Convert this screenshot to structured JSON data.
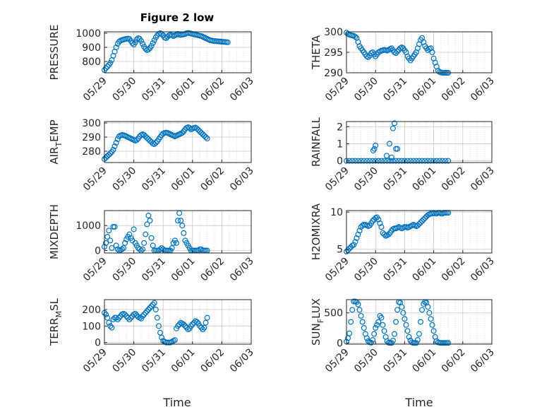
{
  "figure": {
    "title": "Figure 2 low",
    "xlabel": "Time"
  },
  "colors": {
    "series": "#0072BD",
    "axis": "#262626",
    "grid": "#c8c8c8"
  },
  "chart_data": [
    {
      "type": "scatter",
      "ylabel": "PRESSURE",
      "xlim": [
        "05/29",
        "06/03"
      ],
      "ylim": [
        720,
        1010
      ],
      "yticks": [
        800,
        900,
        1000
      ],
      "grid": true,
      "x_days": [
        0.0,
        0.05,
        0.1,
        0.15,
        0.2,
        0.25,
        0.3,
        0.35,
        0.4,
        0.45,
        0.5,
        0.55,
        0.6,
        0.65,
        0.7,
        0.75,
        0.8,
        0.85,
        0.9,
        0.95,
        1.0,
        1.05,
        1.1,
        1.15,
        1.2,
        1.25,
        1.3,
        1.35,
        1.4,
        1.45,
        1.5,
        1.55,
        1.6,
        1.65,
        1.7,
        1.75,
        1.8,
        1.85,
        1.9,
        1.95,
        2.0,
        2.05,
        2.1,
        2.15,
        2.2,
        2.25,
        2.3,
        2.35,
        2.4,
        2.45,
        2.5,
        2.55,
        2.6,
        2.65,
        2.7,
        2.75,
        2.8,
        2.85,
        2.9,
        2.95,
        3.0,
        3.05,
        3.1,
        3.15,
        3.2,
        3.25,
        3.3,
        3.35,
        3.4,
        3.45,
        3.5,
        3.55,
        3.6,
        3.65,
        3.7,
        3.75,
        3.8,
        3.85,
        3.9,
        3.95,
        4.0,
        4.05,
        4.1,
        4.15,
        4.2
      ],
      "values": [
        740,
        752,
        764,
        776,
        790,
        810,
        840,
        870,
        900,
        925,
        940,
        948,
        952,
        955,
        958,
        960,
        962,
        960,
        945,
        930,
        920,
        935,
        955,
        965,
        960,
        945,
        925,
        905,
        890,
        880,
        885,
        895,
        910,
        930,
        950,
        970,
        985,
        995,
        1000,
        995,
        985,
        970,
        965,
        975,
        985,
        990,
        985,
        980,
        985,
        990,
        995,
        990,
        988,
        990,
        992,
        995,
        1000,
        1002,
        1000,
        998,
        995,
        992,
        990,
        988,
        985,
        982,
        980,
        975,
        970,
        965,
        960,
        955,
        950,
        948,
        946,
        945,
        944,
        943,
        942,
        941,
        940,
        939,
        938,
        937,
        936
      ],
      "x": [
        "05/29",
        "05/30",
        "05/31",
        "06/01",
        "06/02",
        "06/03"
      ]
    },
    {
      "type": "scatter",
      "ylabel": "THETA",
      "xlim": [
        "05/29",
        "06/03"
      ],
      "ylim": [
        290,
        300
      ],
      "yticks": [
        290,
        295,
        300
      ],
      "grid": true,
      "x_days": [
        0.0,
        0.05,
        0.1,
        0.15,
        0.2,
        0.25,
        0.3,
        0.35,
        0.4,
        0.45,
        0.5,
        0.55,
        0.6,
        0.65,
        0.7,
        0.75,
        0.8,
        0.85,
        0.9,
        0.95,
        1.0,
        1.05,
        1.1,
        1.15,
        1.2,
        1.25,
        1.3,
        1.35,
        1.4,
        1.45,
        1.5,
        1.55,
        1.6,
        1.65,
        1.7,
        1.75,
        1.8,
        1.85,
        1.9,
        1.95,
        2.0,
        2.05,
        2.1,
        2.15,
        2.2,
        2.25,
        2.3,
        2.35,
        2.4,
        2.45,
        2.5,
        2.55,
        2.6,
        2.65,
        2.7,
        2.75,
        2.8,
        2.85,
        2.9,
        2.95,
        3.0,
        3.05,
        3.1,
        3.15,
        3.2,
        3.25,
        3.3,
        3.35,
        3.4,
        3.45,
        3.5
      ],
      "values": [
        299.8,
        299.5,
        299.3,
        299.2,
        299.1,
        299.0,
        298.8,
        298.5,
        297.5,
        296.5,
        296.0,
        295.5,
        295.0,
        294.5,
        294.0,
        293.8,
        294.2,
        294.8,
        295.0,
        294.5,
        294.0,
        294.5,
        295.0,
        295.2,
        295.4,
        295.5,
        295.6,
        295.5,
        295.4,
        295.6,
        295.8,
        296.0,
        295.5,
        295.0,
        294.8,
        295.2,
        295.6,
        296.0,
        296.2,
        296.0,
        295.5,
        295.0,
        294.0,
        293.5,
        293.0,
        293.5,
        294.0,
        294.5,
        295.0,
        296.0,
        297.0,
        298.0,
        298.5,
        297.5,
        296.5,
        296.0,
        295.5,
        295.8,
        296.0,
        295.0,
        293.5,
        292.5,
        291.5,
        290.5,
        290.2,
        290.1,
        290.0,
        290.0,
        290.0,
        290.0,
        290.0
      ],
      "x": [
        "05/29",
        "05/30",
        "05/31",
        "06/01",
        "06/02",
        "06/03"
      ]
    },
    {
      "type": "scatter",
      "ylabel": "AIR_TEMP",
      "xlim": [
        "05/29",
        "06/03"
      ],
      "ylim": [
        272,
        301
      ],
      "yticks": [
        280,
        290,
        300
      ],
      "grid": true,
      "x_days": [
        0.0,
        0.05,
        0.1,
        0.15,
        0.2,
        0.25,
        0.3,
        0.35,
        0.4,
        0.45,
        0.5,
        0.55,
        0.6,
        0.65,
        0.7,
        0.75,
        0.8,
        0.85,
        0.9,
        0.95,
        1.0,
        1.05,
        1.1,
        1.15,
        1.2,
        1.25,
        1.3,
        1.35,
        1.4,
        1.45,
        1.5,
        1.55,
        1.6,
        1.65,
        1.7,
        1.75,
        1.8,
        1.85,
        1.9,
        1.95,
        2.0,
        2.05,
        2.1,
        2.15,
        2.2,
        2.25,
        2.3,
        2.35,
        2.4,
        2.45,
        2.5,
        2.55,
        2.6,
        2.65,
        2.7,
        2.75,
        2.8,
        2.85,
        2.9,
        2.95,
        3.0,
        3.05,
        3.1,
        3.15,
        3.2,
        3.25,
        3.3,
        3.35,
        3.4,
        3.45,
        3.5
      ],
      "values": [
        274.5,
        275.5,
        276.5,
        277.5,
        278.5,
        279.5,
        281.0,
        283.5,
        286.0,
        288.5,
        290.5,
        291.2,
        291.5,
        291.3,
        291.0,
        290.5,
        290.0,
        289.5,
        289.0,
        288.5,
        288.0,
        287.5,
        288.0,
        289.0,
        290.5,
        291.5,
        292.0,
        291.5,
        290.5,
        289.5,
        288.5,
        287.5,
        286.5,
        285.5,
        285.0,
        286.0,
        287.0,
        288.5,
        290.0,
        291.5,
        292.5,
        293.0,
        293.2,
        293.0,
        292.5,
        292.0,
        291.5,
        291.0,
        290.5,
        291.0,
        291.5,
        292.0,
        292.5,
        293.0,
        294.0,
        295.5,
        296.5,
        297.0,
        296.5,
        295.5,
        296.0,
        296.5,
        296.8,
        296.0,
        295.0,
        294.0,
        293.0,
        292.0,
        291.0,
        290.0,
        289.0
      ],
      "x": [
        "05/29",
        "05/30",
        "05/31",
        "06/01",
        "06/02",
        "06/03"
      ]
    },
    {
      "type": "scatter",
      "ylabel": "RAINFALL",
      "xlim": [
        "05/29",
        "06/03"
      ],
      "ylim": [
        -0.1,
        2.3
      ],
      "yticks": [
        0,
        1,
        2
      ],
      "grid": true,
      "x_days": [
        0.0,
        0.1,
        0.2,
        0.3,
        0.4,
        0.5,
        0.6,
        0.7,
        0.8,
        0.9,
        1.0,
        1.1,
        1.2,
        1.3,
        1.4,
        1.5,
        1.6,
        1.7,
        1.8,
        1.9,
        2.0,
        2.1,
        2.2,
        2.3,
        2.4,
        2.5,
        2.6,
        2.7,
        2.8,
        2.9,
        3.0,
        3.1,
        3.2,
        3.3,
        3.4,
        3.5,
        0.92,
        0.96,
        1.0,
        1.38,
        1.48,
        1.55,
        1.6,
        1.65,
        1.7,
        1.75
      ],
      "values": [
        0,
        0,
        0,
        0,
        0,
        0,
        0,
        0,
        0,
        0,
        0,
        0,
        0,
        0,
        0,
        0,
        0,
        0,
        0,
        0,
        0,
        0,
        0,
        0,
        0,
        0,
        0,
        0,
        0,
        0,
        0,
        0,
        0,
        0,
        0,
        0,
        0.6,
        0.7,
        0.9,
        0.3,
        1.0,
        0.2,
        1.9,
        2.2,
        0.7,
        0.7
      ],
      "x": [
        "05/29",
        "05/30",
        "05/31",
        "06/01",
        "06/02",
        "06/03"
      ]
    },
    {
      "type": "scatter",
      "ylabel": "MIXDEPTH",
      "xlim": [
        "05/29",
        "06/03"
      ],
      "ylim": [
        -100,
        1600
      ],
      "yticks": [
        0,
        1000
      ],
      "grid": true,
      "x_days": [
        0.0,
        0.05,
        0.1,
        0.15,
        0.2,
        0.25,
        0.3,
        0.35,
        0.4,
        0.45,
        0.5,
        0.55,
        0.6,
        0.65,
        0.7,
        0.75,
        0.8,
        0.85,
        0.9,
        0.95,
        1.0,
        1.05,
        1.1,
        1.15,
        1.2,
        1.25,
        1.3,
        1.35,
        1.4,
        1.45,
        1.5,
        1.55,
        1.6,
        1.65,
        1.7,
        1.75,
        1.8,
        1.85,
        1.9,
        1.95,
        2.0,
        2.05,
        2.1,
        2.15,
        2.2,
        2.25,
        2.3,
        2.35,
        2.4,
        2.45,
        2.5,
        2.55,
        2.6,
        2.65,
        2.7,
        2.75,
        2.8,
        2.85,
        2.9,
        2.95,
        3.0,
        3.05,
        3.1,
        3.15,
        3.2,
        3.25,
        3.3,
        3.35,
        3.4,
        3.45,
        3.5
      ],
      "values": [
        150,
        300,
        550,
        800,
        400,
        100,
        950,
        950,
        200,
        50,
        0,
        20,
        50,
        100,
        300,
        450,
        550,
        650,
        500,
        400,
        850,
        300,
        200,
        100,
        50,
        0,
        50,
        300,
        650,
        1050,
        1400,
        1200,
        500,
        200,
        0,
        0,
        0,
        0,
        50,
        100,
        50,
        0,
        0,
        0,
        0,
        0,
        100,
        300,
        400,
        300,
        1200,
        1500,
        1200,
        1000,
        700,
        400,
        300,
        200,
        100,
        0,
        0,
        0,
        0,
        0,
        0,
        50,
        50,
        0,
        0,
        0,
        0
      ],
      "x": [
        "05/29",
        "05/30",
        "05/31",
        "06/01",
        "06/02",
        "06/03"
      ]
    },
    {
      "type": "scatter",
      "ylabel": "H2OMIXRA",
      "xlim": [
        "05/29",
        "06/03"
      ],
      "ylim": [
        4.5,
        10.2
      ],
      "yticks": [
        5,
        10
      ],
      "grid": true,
      "x_days": [
        0.0,
        0.05,
        0.1,
        0.15,
        0.2,
        0.25,
        0.3,
        0.35,
        0.4,
        0.45,
        0.5,
        0.55,
        0.6,
        0.65,
        0.7,
        0.75,
        0.8,
        0.85,
        0.9,
        0.95,
        1.0,
        1.05,
        1.1,
        1.15,
        1.2,
        1.25,
        1.3,
        1.35,
        1.4,
        1.45,
        1.5,
        1.55,
        1.6,
        1.65,
        1.7,
        1.75,
        1.8,
        1.85,
        1.9,
        1.95,
        2.0,
        2.05,
        2.1,
        2.15,
        2.2,
        2.25,
        2.3,
        2.35,
        2.4,
        2.45,
        2.5,
        2.55,
        2.6,
        2.65,
        2.7,
        2.75,
        2.8,
        2.85,
        2.9,
        2.95,
        3.0,
        3.05,
        3.1,
        3.15,
        3.2,
        3.25,
        3.3,
        3.35,
        3.4,
        3.45,
        3.5
      ],
      "values": [
        4.7,
        4.9,
        5.1,
        5.3,
        5.5,
        5.6,
        6.0,
        6.5,
        7.0,
        7.5,
        8.0,
        8.2,
        8.3,
        8.3,
        8.2,
        8.1,
        8.2,
        8.5,
        8.8,
        9.0,
        9.2,
        9.3,
        9.0,
        8.5,
        8.0,
        7.2,
        7.0,
        6.8,
        6.9,
        7.0,
        7.2,
        7.5,
        7.7,
        7.8,
        7.8,
        7.9,
        8.0,
        7.9,
        7.8,
        7.9,
        8.0,
        8.0,
        7.9,
        8.0,
        8.1,
        8.2,
        8.3,
        8.2,
        8.1,
        8.2,
        8.4,
        8.6,
        8.8,
        9.0,
        9.2,
        9.4,
        9.6,
        9.7,
        9.8,
        9.8,
        9.9,
        9.8,
        9.8,
        9.9,
        9.9,
        9.8,
        9.8,
        9.9,
        9.9,
        9.9,
        9.9
      ],
      "x": [
        "05/29",
        "05/30",
        "05/31",
        "06/01",
        "06/02",
        "06/03"
      ]
    },
    {
      "type": "scatter",
      "ylabel": "TERR_MSL",
      "xlim": [
        "05/29",
        "06/03"
      ],
      "ylim": [
        -10,
        260
      ],
      "yticks": [
        0,
        100,
        200
      ],
      "grid": true,
      "x_days": [
        0.0,
        0.05,
        0.1,
        0.15,
        0.2,
        0.25,
        0.3,
        0.35,
        0.4,
        0.45,
        0.5,
        0.55,
        0.6,
        0.65,
        0.7,
        0.75,
        0.8,
        0.85,
        0.9,
        0.95,
        1.0,
        1.05,
        1.1,
        1.15,
        1.2,
        1.25,
        1.3,
        1.35,
        1.4,
        1.45,
        1.5,
        1.55,
        1.6,
        1.65,
        1.7,
        1.75,
        1.8,
        1.85,
        1.9,
        1.95,
        2.0,
        2.05,
        2.1,
        2.15,
        2.2,
        2.25,
        2.3,
        2.35,
        2.4,
        2.45,
        2.5,
        2.55,
        2.6,
        2.65,
        2.7,
        2.75,
        2.8,
        2.85,
        2.9,
        2.95,
        3.0,
        3.05,
        3.1,
        3.15,
        3.2,
        3.25,
        3.3,
        3.35,
        3.4,
        3.45,
        3.5
      ],
      "values": [
        180,
        170,
        150,
        120,
        100,
        90,
        140,
        150,
        150,
        140,
        150,
        160,
        170,
        175,
        170,
        160,
        150,
        140,
        150,
        160,
        170,
        175,
        165,
        155,
        150,
        145,
        160,
        170,
        180,
        190,
        200,
        210,
        220,
        230,
        240,
        200,
        150,
        100,
        60,
        30,
        10,
        5,
        0,
        0,
        0,
        0,
        5,
        10,
        15,
        85,
        100,
        110,
        120,
        115,
        110,
        100,
        90,
        80,
        85,
        100,
        110,
        120,
        130,
        125,
        115,
        100,
        90,
        80,
        90,
        120,
        150
      ],
      "x": [
        "05/29",
        "05/30",
        "05/31",
        "06/01",
        "06/02",
        "06/03"
      ]
    },
    {
      "type": "scatter",
      "ylabel": "SUN_FLUX",
      "xlim": [
        "05/29",
        "06/03"
      ],
      "ylim": [
        -20,
        720
      ],
      "yticks": [
        0,
        500
      ],
      "grid": true,
      "x_days": [
        0.0,
        0.05,
        0.1,
        0.15,
        0.2,
        0.25,
        0.3,
        0.35,
        0.4,
        0.45,
        0.5,
        0.55,
        0.6,
        0.65,
        0.7,
        0.75,
        0.8,
        0.85,
        0.9,
        0.95,
        1.0,
        1.05,
        1.1,
        1.15,
        1.2,
        1.25,
        1.3,
        1.35,
        1.4,
        1.45,
        1.5,
        1.55,
        1.6,
        1.65,
        1.7,
        1.75,
        1.8,
        1.85,
        1.9,
        1.95,
        2.0,
        2.05,
        2.1,
        2.15,
        2.2,
        2.25,
        2.3,
        2.35,
        2.4,
        2.45,
        2.5,
        2.55,
        2.6,
        2.65,
        2.7,
        2.75,
        2.8,
        2.85,
        2.9,
        2.95,
        3.0,
        3.05,
        3.1,
        3.15,
        3.2,
        3.25,
        3.3,
        3.35,
        3.4,
        3.45,
        3.5
      ],
      "values": [
        20,
        80,
        160,
        350,
        550,
        690,
        690,
        680,
        640,
        550,
        450,
        350,
        250,
        150,
        80,
        30,
        10,
        5,
        50,
        150,
        250,
        300,
        350,
        450,
        420,
        300,
        200,
        100,
        30,
        5,
        0,
        0,
        40,
        150,
        350,
        550,
        680,
        670,
        600,
        500,
        400,
        300,
        200,
        100,
        40,
        10,
        0,
        0,
        0,
        50,
        150,
        350,
        550,
        650,
        680,
        670,
        600,
        500,
        400,
        300,
        200,
        100,
        30,
        10,
        5,
        0,
        0,
        0,
        0,
        0,
        0
      ],
      "x": [
        "05/29",
        "05/30",
        "05/31",
        "06/01",
        "06/02",
        "06/03"
      ]
    }
  ]
}
